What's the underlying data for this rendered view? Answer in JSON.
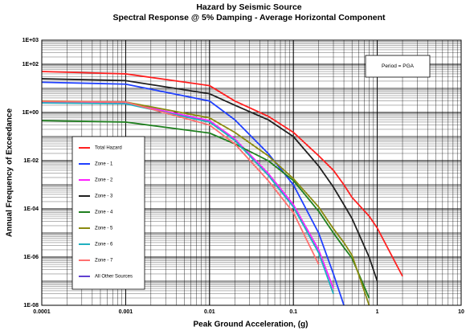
{
  "chart_data": {
    "type": "line",
    "title": "Hazard by Seismic Source",
    "subtitle": "Spectral Response @ 5% Damping - Average Horizontal Component",
    "x_label": "Peak Ground Acceleration, (g)",
    "y_label": "Annual Frequency of Exceedance",
    "annotation": "Period = PGA",
    "x_log": true,
    "y_log": true,
    "grid": true,
    "legend": "lower left",
    "xlim": [
      0.0001,
      10
    ],
    "ylim": [
      1e-08,
      1000
    ],
    "xticks": [
      0.0001,
      0.001,
      0.01,
      0.1,
      1,
      10
    ],
    "yticks": [
      {
        "value": 1000,
        "label": "1E+03"
      },
      {
        "value": 100,
        "label": "1E+02"
      },
      {
        "value": 1,
        "label": "1E+00"
      },
      {
        "value": 0.01,
        "label": "1E-02"
      },
      {
        "value": 0.0001,
        "label": "1E-04"
      },
      {
        "value": 1e-06,
        "label": "1E-06"
      },
      {
        "value": 1e-08,
        "label": "1E-08"
      }
    ],
    "x": [
      0.0001,
      0.001,
      0.01,
      0.02,
      0.05,
      0.1,
      0.2,
      0.3,
      0.4,
      0.5,
      0.8,
      1,
      2,
      3
    ],
    "series": [
      {
        "name": "Total Hazard",
        "color": "#ff2020",
        "values": [
          50,
          40,
          13,
          3,
          0.7,
          0.15,
          0.016,
          0.004,
          0.001,
          0.0003,
          5e-05,
          1.6e-05,
          1.6e-07,
          null
        ]
      },
      {
        "name": "Zone - 1",
        "color": "#2040ff",
        "values": [
          18,
          15,
          3,
          0.5,
          0.02,
          0.001,
          1e-05,
          2e-07,
          1e-08,
          null,
          null,
          null,
          null,
          null
        ]
      },
      {
        "name": "Zone - 2",
        "color": "#ff20ff",
        "values": [
          2.7,
          2.5,
          0.46,
          0.08,
          0.003,
          0.00015,
          2e-06,
          5e-08,
          null,
          null,
          null,
          null,
          null,
          null
        ]
      },
      {
        "name": "Zone - 3",
        "color": "#202020",
        "values": [
          25,
          21,
          6,
          2,
          0.5,
          0.1,
          0.006,
          0.0008,
          0.00015,
          4e-05,
          1e-06,
          1e-07,
          null,
          null
        ]
      },
      {
        "name": "Zone - 4",
        "color": "#208020",
        "values": [
          0.46,
          0.4,
          0.14,
          0.05,
          0.01,
          0.0015,
          8e-05,
          1e-05,
          2.5e-06,
          9e-07,
          2e-08,
          null,
          null,
          null
        ]
      },
      {
        "name": "Zone - 5",
        "color": "#8a8a10",
        "values": [
          3,
          2.7,
          0.6,
          0.15,
          0.016,
          0.0018,
          0.00012,
          1.5e-05,
          4e-06,
          1.2e-06,
          1e-08,
          null,
          null,
          null
        ]
      },
      {
        "name": "Zone - 6",
        "color": "#20b0c0",
        "values": [
          2.5,
          2.3,
          0.4,
          0.07,
          0.0025,
          0.00012,
          1.5e-06,
          3e-08,
          null,
          null,
          null,
          null,
          null,
          null
        ]
      },
      {
        "name": "Zone - 7",
        "color": "#ff7070",
        "values": [
          2.9,
          2.7,
          0.3,
          0.05,
          0.0015,
          7e-05,
          5e-07,
          null,
          null,
          null,
          null,
          null,
          null,
          null
        ]
      },
      {
        "name": "All Other Sources",
        "color": "#6040d0",
        "values": [
          null,
          null,
          null,
          null,
          null,
          null,
          null,
          null,
          null,
          null,
          null,
          null,
          null,
          null
        ]
      }
    ]
  }
}
